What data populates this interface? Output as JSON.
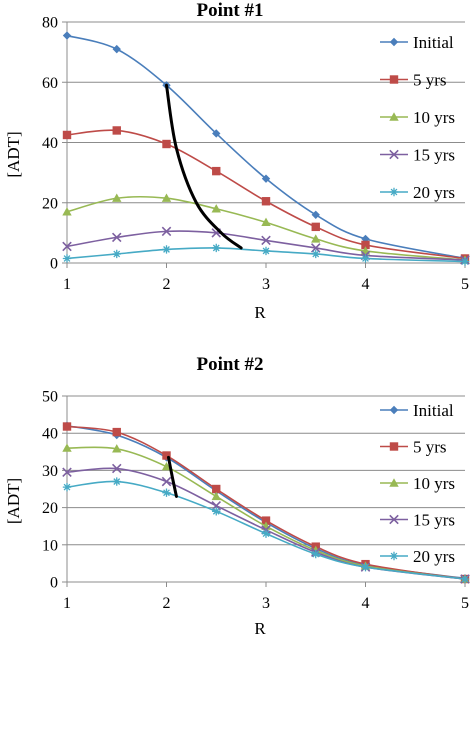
{
  "chart_data": [
    {
      "type": "line",
      "title": "Point #1",
      "xlabel": "R",
      "ylabel": "[ADT]",
      "xlim": [
        1,
        5
      ],
      "ylim": [
        0,
        80
      ],
      "xticks": [
        "1",
        "2",
        "3",
        "4",
        "5"
      ],
      "yticks": [
        "0",
        "20",
        "40",
        "60",
        "80"
      ],
      "grid": "horizontal",
      "legend_position": "right",
      "x": [
        1,
        1.5,
        2,
        2.5,
        3,
        3.5,
        4,
        5
      ],
      "series": [
        {
          "name": "Initial",
          "color": "#4a7ebb",
          "marker": "diamond",
          "values": [
            75.5,
            71,
            59,
            43,
            28,
            16,
            8,
            1.5
          ]
        },
        {
          "name": "5 yrs",
          "color": "#be4b48",
          "marker": "square",
          "values": [
            42.5,
            44,
            39.5,
            30.5,
            20.5,
            12,
            6,
            1.5
          ]
        },
        {
          "name": "10 yrs",
          "color": "#98b954",
          "marker": "triangle",
          "values": [
            17,
            21.5,
            21.5,
            18,
            13.5,
            8,
            4,
            1
          ]
        },
        {
          "name": "15 yrs",
          "color": "#7d60a0",
          "marker": "x",
          "values": [
            5.5,
            8.5,
            10.5,
            10,
            7.5,
            5,
            2.5,
            1
          ]
        },
        {
          "name": "20 yrs",
          "color": "#46aac5",
          "marker": "star",
          "values": [
            1.5,
            3,
            4.5,
            5,
            4,
            3,
            1.5,
            0.5
          ]
        }
      ],
      "trend_line": {
        "x": [
          2,
          2.1,
          2.3,
          2.55,
          2.75
        ],
        "y": [
          59,
          38,
          20,
          10,
          5
        ]
      }
    },
    {
      "type": "line",
      "title": "Point #2",
      "xlabel": "R",
      "ylabel": "[ADT]",
      "xlim": [
        1,
        5
      ],
      "ylim": [
        0,
        50
      ],
      "xticks": [
        "1",
        "2",
        "3",
        "4",
        "5"
      ],
      "yticks": [
        "0",
        "10",
        "20",
        "30",
        "40",
        "50"
      ],
      "grid": "horizontal",
      "legend_position": "right",
      "x": [
        1,
        1.5,
        2,
        2.5,
        3,
        3.5,
        4,
        5
      ],
      "series": [
        {
          "name": "Initial",
          "color": "#4a7ebb",
          "marker": "diamond",
          "values": [
            42,
            39.5,
            33.5,
            24.5,
            16,
            9,
            4.5,
            1
          ]
        },
        {
          "name": "5 yrs",
          "color": "#be4b48",
          "marker": "square",
          "values": [
            41.8,
            40.3,
            34,
            25,
            16.5,
            9.5,
            4.8,
            0.8
          ]
        },
        {
          "name": "10 yrs",
          "color": "#98b954",
          "marker": "triangle",
          "values": [
            36,
            35.8,
            31,
            23,
            15,
            8.5,
            4.3,
            0.8
          ]
        },
        {
          "name": "15 yrs",
          "color": "#7d60a0",
          "marker": "x",
          "values": [
            29.5,
            30.5,
            27,
            20.5,
            14,
            8,
            4,
            0.8
          ]
        },
        {
          "name": "20 yrs",
          "color": "#46aac5",
          "marker": "star",
          "values": [
            25.5,
            27,
            24,
            19,
            13,
            7.5,
            4,
            0.8
          ]
        }
      ],
      "trend_line": {
        "x": [
          2.02,
          2.06,
          2.1
        ],
        "y": [
          33.5,
          28,
          23
        ]
      }
    }
  ]
}
